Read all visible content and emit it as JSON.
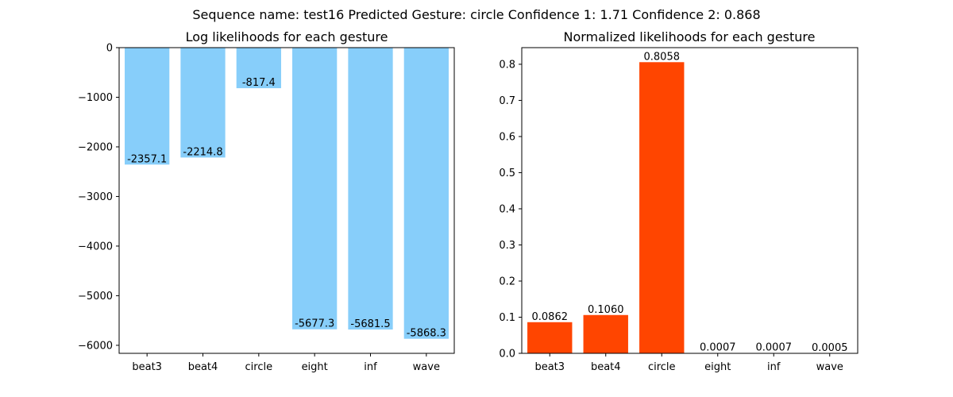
{
  "suptitle": "Sequence name: test16  Predicted Gesture: circle     Confidence 1: 1.71   Confidence 2: 0.868",
  "colors": {
    "left_bars": "#87cefa",
    "right_bars": "#ff4500"
  },
  "chart_data": [
    {
      "type": "bar",
      "title": "Log likelihoods for each gesture",
      "xlabel": "",
      "ylabel": "",
      "categories": [
        "beat3",
        "beat4",
        "circle",
        "eight",
        "inf",
        "wave"
      ],
      "values": [
        -2357.1,
        -2214.8,
        -817.4,
        -5677.3,
        -5681.5,
        -5868.3
      ],
      "data_labels": [
        "-2357.1",
        "-2214.8",
        "-817.4",
        "-5677.3",
        "-5681.5",
        "-5868.3"
      ],
      "yticks": [
        0,
        -1000,
        -2000,
        -3000,
        -4000,
        -5000,
        -6000
      ],
      "ytick_labels": [
        "0",
        "−1000",
        "−2000",
        "−3000",
        "−4000",
        "−5000",
        "−6000"
      ],
      "ylim": [
        -6161.7,
        0
      ],
      "grid": false,
      "color": "#87cefa"
    },
    {
      "type": "bar",
      "title": "Normalized likelihoods for each gesture",
      "xlabel": "",
      "ylabel": "",
      "categories": [
        "beat3",
        "beat4",
        "circle",
        "eight",
        "inf",
        "wave"
      ],
      "values": [
        0.0862,
        0.106,
        0.8058,
        0.0007,
        0.0007,
        0.0005
      ],
      "data_labels": [
        "0.0862",
        "0.1060",
        "0.8058",
        "0.0007",
        "0.0007",
        "0.0005"
      ],
      "yticks": [
        0,
        0.1,
        0.2,
        0.3,
        0.4,
        0.5,
        0.6,
        0.7,
        0.8
      ],
      "ytick_labels": [
        "0.0",
        "0.1",
        "0.2",
        "0.3",
        "0.4",
        "0.5",
        "0.6",
        "0.7",
        "0.8"
      ],
      "ylim": [
        0,
        0.846
      ],
      "grid": false,
      "color": "#ff4500"
    }
  ]
}
